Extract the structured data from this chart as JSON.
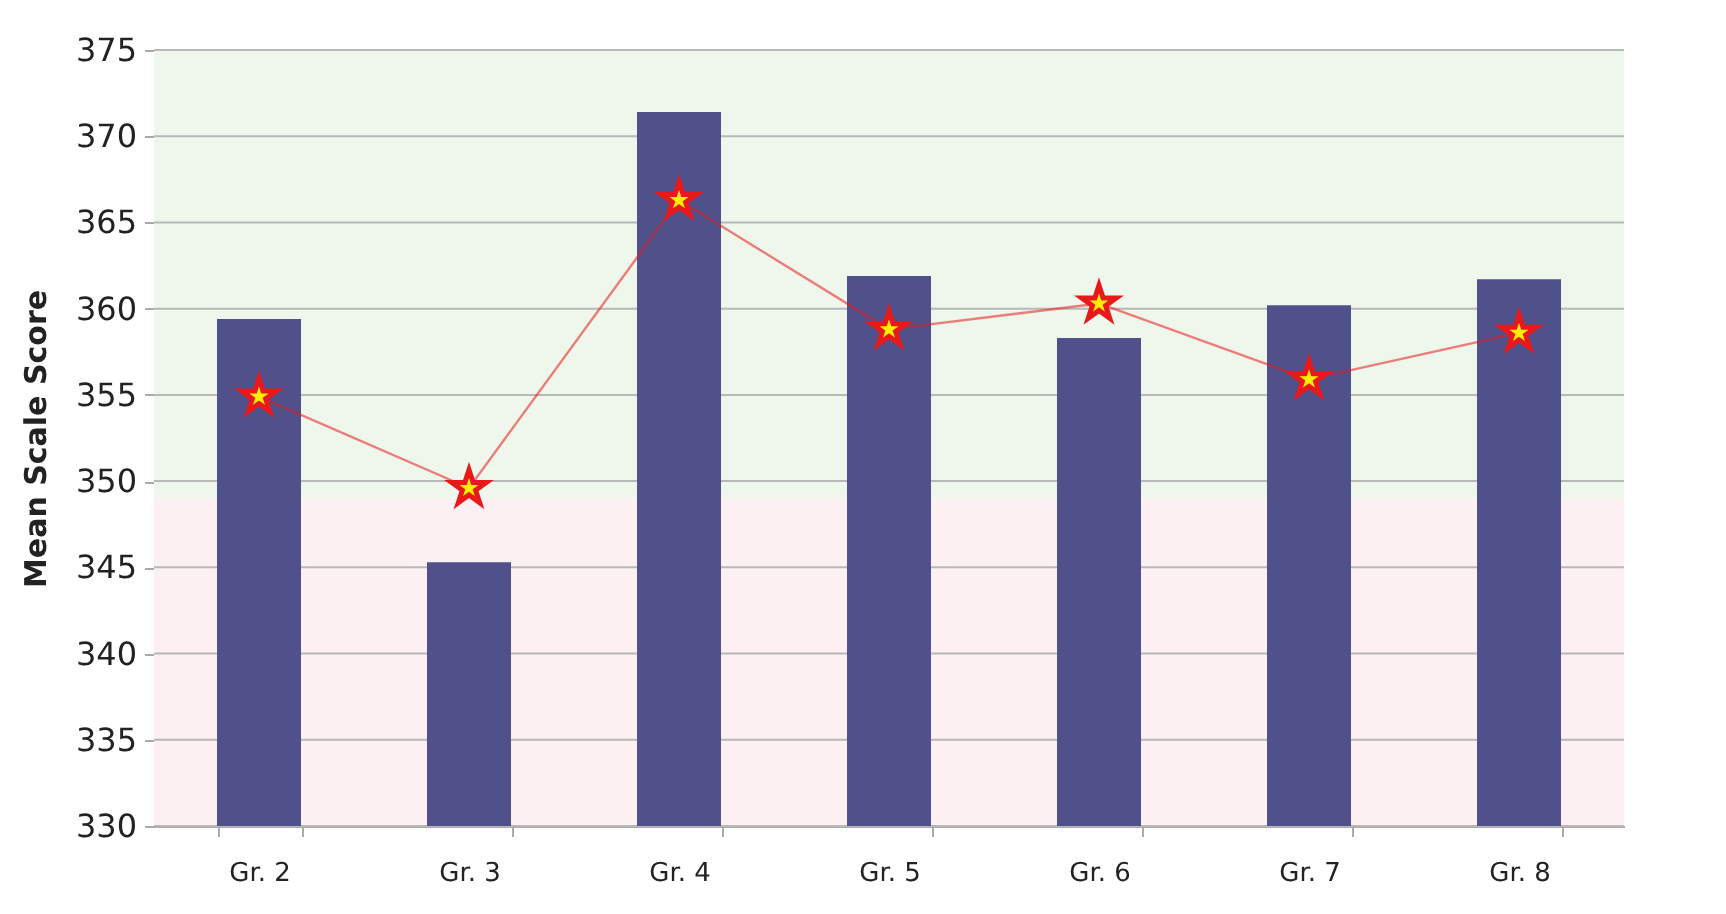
{
  "chart_data": {
    "type": "bar",
    "ylabel": "Mean Scale Score",
    "categories": [
      "Gr. 2",
      "Gr. 3",
      "Gr. 4",
      "Gr. 5",
      "Gr. 6",
      "Gr. 7",
      "Gr. 8"
    ],
    "series": [
      {
        "color": "#50508a",
        "values": [
          359.4,
          345.3,
          371.4,
          361.9,
          358.3,
          360.2,
          361.7
        ]
      },
      {
        "type": "line",
        "color": "#e8191b",
        "marker": "star",
        "values": [
          354.9,
          349.6,
          366.3,
          358.8,
          360.3,
          355.9,
          358.6
        ]
      }
    ],
    "ylim": [
      330,
      375
    ],
    "yticks": [
      330,
      335,
      340,
      345,
      350,
      355,
      360,
      365,
      370,
      375
    ],
    "grid": "y",
    "bands": [
      {
        "axis": "y",
        "from": 330,
        "to": 349,
        "color": "#fdf0f2"
      },
      {
        "axis": "y",
        "from": 349,
        "to": 375,
        "color": "#eff6ec"
      }
    ]
  }
}
